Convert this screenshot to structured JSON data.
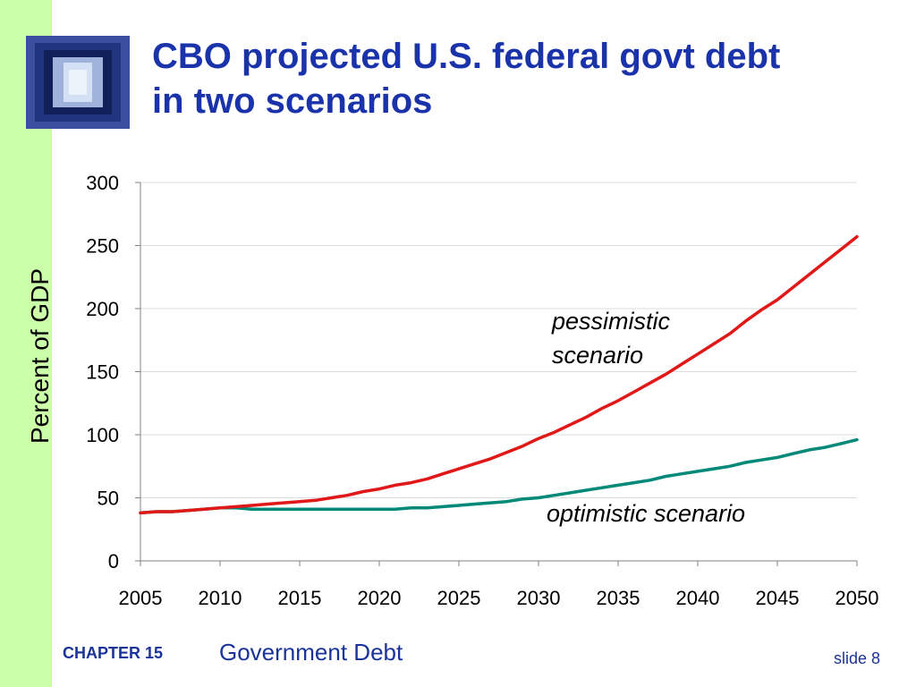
{
  "slide": {
    "title_lines": [
      "CBO projected U.S. federal govt debt",
      "in two scenarios"
    ],
    "chapter_label": "CHAPTER 15",
    "chapter_topic": "Government Debt",
    "slide_number": "slide 8",
    "logo_icon": "window-shaft-image",
    "colors": {
      "title": "#1a33aa",
      "footer": "#1a3399",
      "left_stripe": "#ccffaa"
    }
  },
  "chart_data": {
    "type": "line",
    "title": "",
    "xlabel": "",
    "ylabel": "Percent of GDP",
    "xlim": [
      2005,
      2050
    ],
    "ylim": [
      0,
      300
    ],
    "x_ticks": [
      2005,
      2010,
      2015,
      2020,
      2025,
      2030,
      2035,
      2040,
      2045,
      2050
    ],
    "y_ticks": [
      0,
      50,
      100,
      150,
      200,
      250,
      300
    ],
    "grid": true,
    "legend": "none",
    "x": [
      2005,
      2006,
      2007,
      2008,
      2009,
      2010,
      2011,
      2012,
      2013,
      2014,
      2015,
      2016,
      2017,
      2018,
      2019,
      2020,
      2021,
      2022,
      2023,
      2024,
      2025,
      2026,
      2027,
      2028,
      2029,
      2030,
      2031,
      2032,
      2033,
      2034,
      2035,
      2036,
      2037,
      2038,
      2039,
      2040,
      2041,
      2042,
      2043,
      2044,
      2045,
      2046,
      2047,
      2048,
      2049,
      2050
    ],
    "series": [
      {
        "name": "pessimistic scenario",
        "color": "#e01818",
        "values": [
          38,
          39,
          39,
          40,
          41,
          42,
          43,
          44,
          45,
          46,
          47,
          48,
          50,
          52,
          55,
          57,
          60,
          62,
          65,
          69,
          73,
          77,
          81,
          86,
          91,
          97,
          102,
          108,
          114,
          121,
          127,
          134,
          141,
          148,
          156,
          164,
          172,
          180,
          190,
          199,
          207,
          217,
          227,
          237,
          247,
          257
        ]
      },
      {
        "name": "optimistic scenario",
        "color": "#008878",
        "values": [
          38,
          39,
          39,
          40,
          41,
          42,
          42,
          41,
          41,
          41,
          41,
          41,
          41,
          41,
          41,
          41,
          41,
          42,
          42,
          43,
          44,
          45,
          46,
          47,
          49,
          50,
          52,
          54,
          56,
          58,
          60,
          62,
          64,
          67,
          69,
          71,
          73,
          75,
          78,
          80,
          82,
          85,
          88,
          90,
          93,
          96
        ]
      }
    ],
    "annotations": [
      {
        "lines": [
          "pessimistic",
          "scenario"
        ],
        "series": "pessimistic scenario"
      },
      {
        "lines": [
          "optimistic scenario"
        ],
        "series": "optimistic scenario"
      }
    ]
  }
}
